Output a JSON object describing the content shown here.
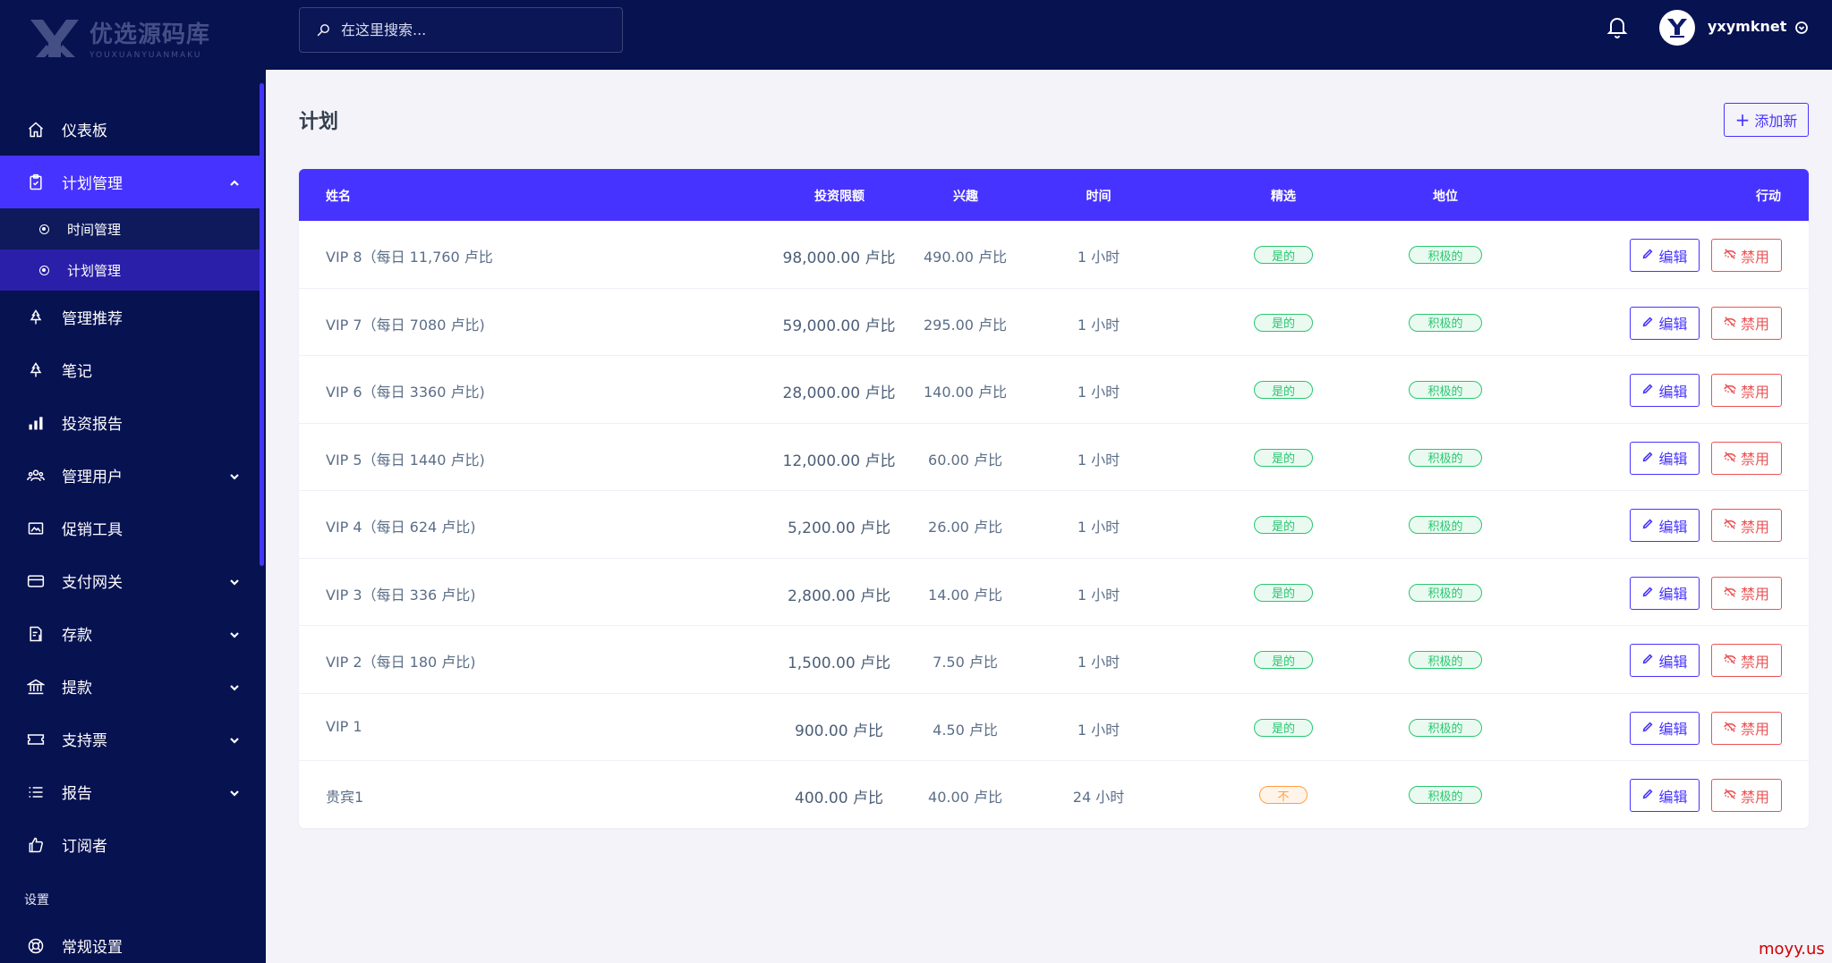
{
  "brand": {
    "name_cn": "优选源码库",
    "name_en": "YOUXUANYUANMAKU"
  },
  "sidebar": {
    "items": [
      {
        "label": "仪表板",
        "icon": "home-icon"
      },
      {
        "label": "计划管理",
        "icon": "clipboard-icon",
        "expanded": true,
        "children": [
          {
            "label": "时间管理"
          },
          {
            "label": "计划管理"
          }
        ]
      },
      {
        "label": "管理推荐",
        "icon": "tree-icon"
      },
      {
        "label": "笔记",
        "icon": "tree-icon"
      },
      {
        "label": "投资报告",
        "icon": "bar-chart-icon"
      },
      {
        "label": "管理用户",
        "icon": "users-icon"
      },
      {
        "label": "促销工具",
        "icon": "image-icon"
      },
      {
        "label": "支付网关",
        "icon": "credit-card-icon"
      },
      {
        "label": "存款",
        "icon": "receipt-icon"
      },
      {
        "label": "提款",
        "icon": "bank-icon"
      },
      {
        "label": "支持票",
        "icon": "ticket-icon"
      },
      {
        "label": "报告",
        "icon": "list-icon"
      },
      {
        "label": "订阅者",
        "icon": "thumbs-up-icon"
      }
    ],
    "settings_title": "设置",
    "settings_items": [
      {
        "label": "常规设置",
        "icon": "lifebuoy-icon"
      }
    ]
  },
  "topbar": {
    "search_placeholder": "在这里搜索...",
    "username": "yxymknet"
  },
  "page": {
    "title": "计划",
    "add_label": "添加新"
  },
  "table": {
    "headers": {
      "name": "姓名",
      "amount": "投资限额",
      "interest": "兴趣",
      "time": "时间",
      "featured": "精选",
      "status": "地位",
      "action": "行动"
    },
    "edit_label": "编辑",
    "disable_label": "禁用",
    "rows": [
      {
        "name": "VIP 8（每日 11,760 卢比",
        "amount": "98,000.00 卢比",
        "interest": "490.00 卢比",
        "time": "1 小时",
        "featured": "是的",
        "status": "积极的"
      },
      {
        "name": "VIP 7（每日 7080 卢比)",
        "amount": "59,000.00 卢比",
        "interest": "295.00 卢比",
        "time": "1 小时",
        "featured": "是的",
        "status": "积极的"
      },
      {
        "name": "VIP 6（每日 3360 卢比)",
        "amount": "28,000.00 卢比",
        "interest": "140.00 卢比",
        "time": "1 小时",
        "featured": "是的",
        "status": "积极的"
      },
      {
        "name": "VIP 5（每日 1440 卢比)",
        "amount": "12,000.00 卢比",
        "interest": "60.00 卢比",
        "time": "1 小时",
        "featured": "是的",
        "status": "积极的"
      },
      {
        "name": "VIP 4（每日 624 卢比)",
        "amount": "5,200.00 卢比",
        "interest": "26.00 卢比",
        "time": "1 小时",
        "featured": "是的",
        "status": "积极的"
      },
      {
        "name": "VIP 3（每日 336 卢比)",
        "amount": "2,800.00 卢比",
        "interest": "14.00 卢比",
        "time": "1 小时",
        "featured": "是的",
        "status": "积极的"
      },
      {
        "name": "VIP 2（每日 180 卢比)",
        "amount": "1,500.00 卢比",
        "interest": "7.50 卢比",
        "time": "1 小时",
        "featured": "是的",
        "status": "积极的"
      },
      {
        "name": "VIP 1",
        "amount": "900.00 卢比",
        "interest": "4.50 卢比",
        "time": "1 小时",
        "featured": "是的",
        "status": "积极的"
      },
      {
        "name": "贵宾1",
        "amount": "400.00 卢比",
        "interest": "40.00 卢比",
        "time": "24 小时",
        "featured": "不",
        "status": "积极的"
      }
    ]
  },
  "watermark": "moyy.us",
  "colors": {
    "sidebar_bg": "#071251",
    "accent": "#4733ff",
    "success": "#28c76f",
    "warning": "#ff9f43",
    "danger": "#ea5455"
  }
}
